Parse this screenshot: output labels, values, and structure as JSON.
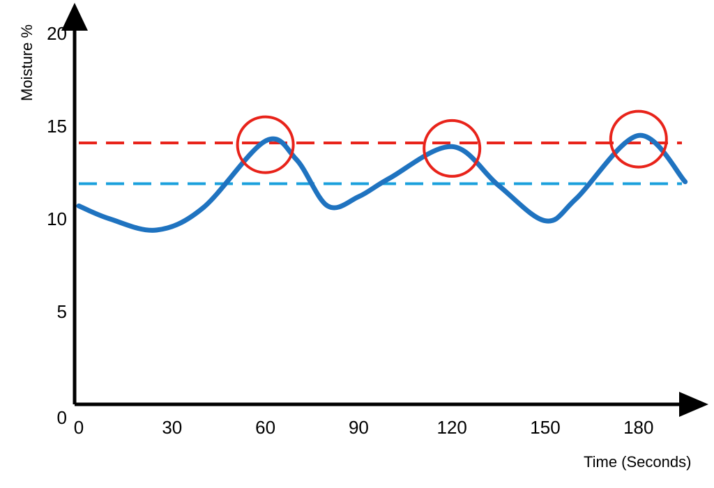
{
  "chart_data": {
    "type": "line",
    "title": "",
    "xlabel": "Time (Seconds)",
    "ylabel": "Moisture %",
    "xlim": [
      0,
      195
    ],
    "ylim": [
      0,
      20
    ],
    "x_ticks": [
      "0",
      "30",
      "60",
      "90",
      "120",
      "150",
      "180"
    ],
    "y_ticks": [
      "0",
      "5",
      "10",
      "15",
      "20"
    ],
    "grid": false,
    "legend": "none",
    "series": [
      {
        "x": [
          0,
          10,
          25,
          40,
          60,
          70,
          80,
          90,
          100,
          120,
          135,
          150,
          160,
          180,
          195
        ],
        "y": [
          10.7,
          10.0,
          9.4,
          10.6,
          14.2,
          13.2,
          10.7,
          11.2,
          12.2,
          13.9,
          11.8,
          9.9,
          11.1,
          14.5,
          12.0
        ],
        "color": "#1f73c0"
      }
    ],
    "threshold_lines": [
      {
        "y": 14.1,
        "color": "#e8231a",
        "style": "dashed"
      },
      {
        "y": 11.9,
        "color": "#1aa0dc",
        "style": "dashed"
      }
    ],
    "highlight_circles": [
      {
        "x": 60,
        "y": 14.0,
        "color": "#e8231a"
      },
      {
        "x": 120,
        "y": 13.8,
        "color": "#e8231a"
      },
      {
        "x": 180,
        "y": 14.3,
        "color": "#e8231a"
      }
    ]
  }
}
